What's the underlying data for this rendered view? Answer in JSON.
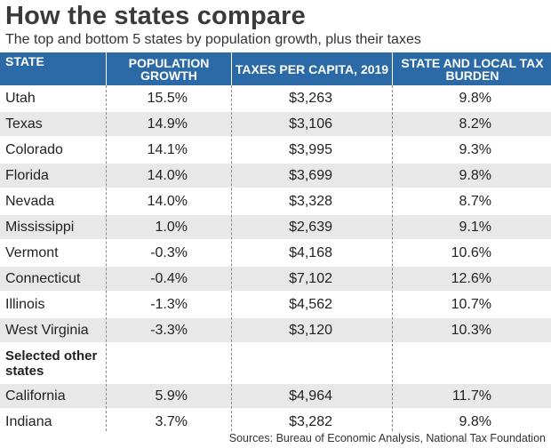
{
  "title": "How the states compare",
  "subtitle": "The top and bottom 5 states by population growth, plus their taxes",
  "headers": [
    "STATE",
    "POPULATION GROWTH",
    "TAXES PER CAPITA, 2019",
    "STATE AND LOCAL TAX BURDEN"
  ],
  "section_label": "Selected other states",
  "source": "Sources: Bureau of Economic Analysis, National Tax Foundation",
  "colors": {
    "header_bg": "#2b6aa6",
    "band_bg": "#e8e8e8",
    "title": "#3a3a3a"
  },
  "chart_data": {
    "type": "table",
    "title": "How the states compare",
    "subtitle": "The top and bottom 5 states by population growth, plus their taxes",
    "columns": [
      "STATE",
      "POPULATION GROWTH",
      "TAXES PER CAPITA, 2019",
      "STATE AND LOCAL TAX BURDEN"
    ],
    "rows": [
      [
        "Utah",
        "15.5%",
        "$3,263",
        "9.8%"
      ],
      [
        "Texas",
        "14.9%",
        "$3,106",
        "8.2%"
      ],
      [
        "Colorado",
        "14.1%",
        "$3,995",
        "9.3%"
      ],
      [
        "Florida",
        "14.0%",
        "$3,699",
        "9.8%"
      ],
      [
        "Nevada",
        "14.0%",
        "$3,328",
        "8.7%"
      ],
      [
        "Mississippi",
        "1.0%",
        "$2,639",
        "9.1%"
      ],
      [
        "Vermont",
        "-0.3%",
        "$4,168",
        "10.6%"
      ],
      [
        "Connecticut",
        "-0.4%",
        "$7,102",
        "12.6%"
      ],
      [
        "Illinois",
        "-1.3%",
        "$4,562",
        "10.7%"
      ],
      [
        "West Virginia",
        "-3.3%",
        "$3,120",
        "10.3%"
      ]
    ],
    "other_rows": [
      [
        "California",
        "5.9%",
        "$4,964",
        "11.7%"
      ],
      [
        "Indiana",
        "3.7%",
        "$3,282",
        "9.8%"
      ]
    ]
  }
}
